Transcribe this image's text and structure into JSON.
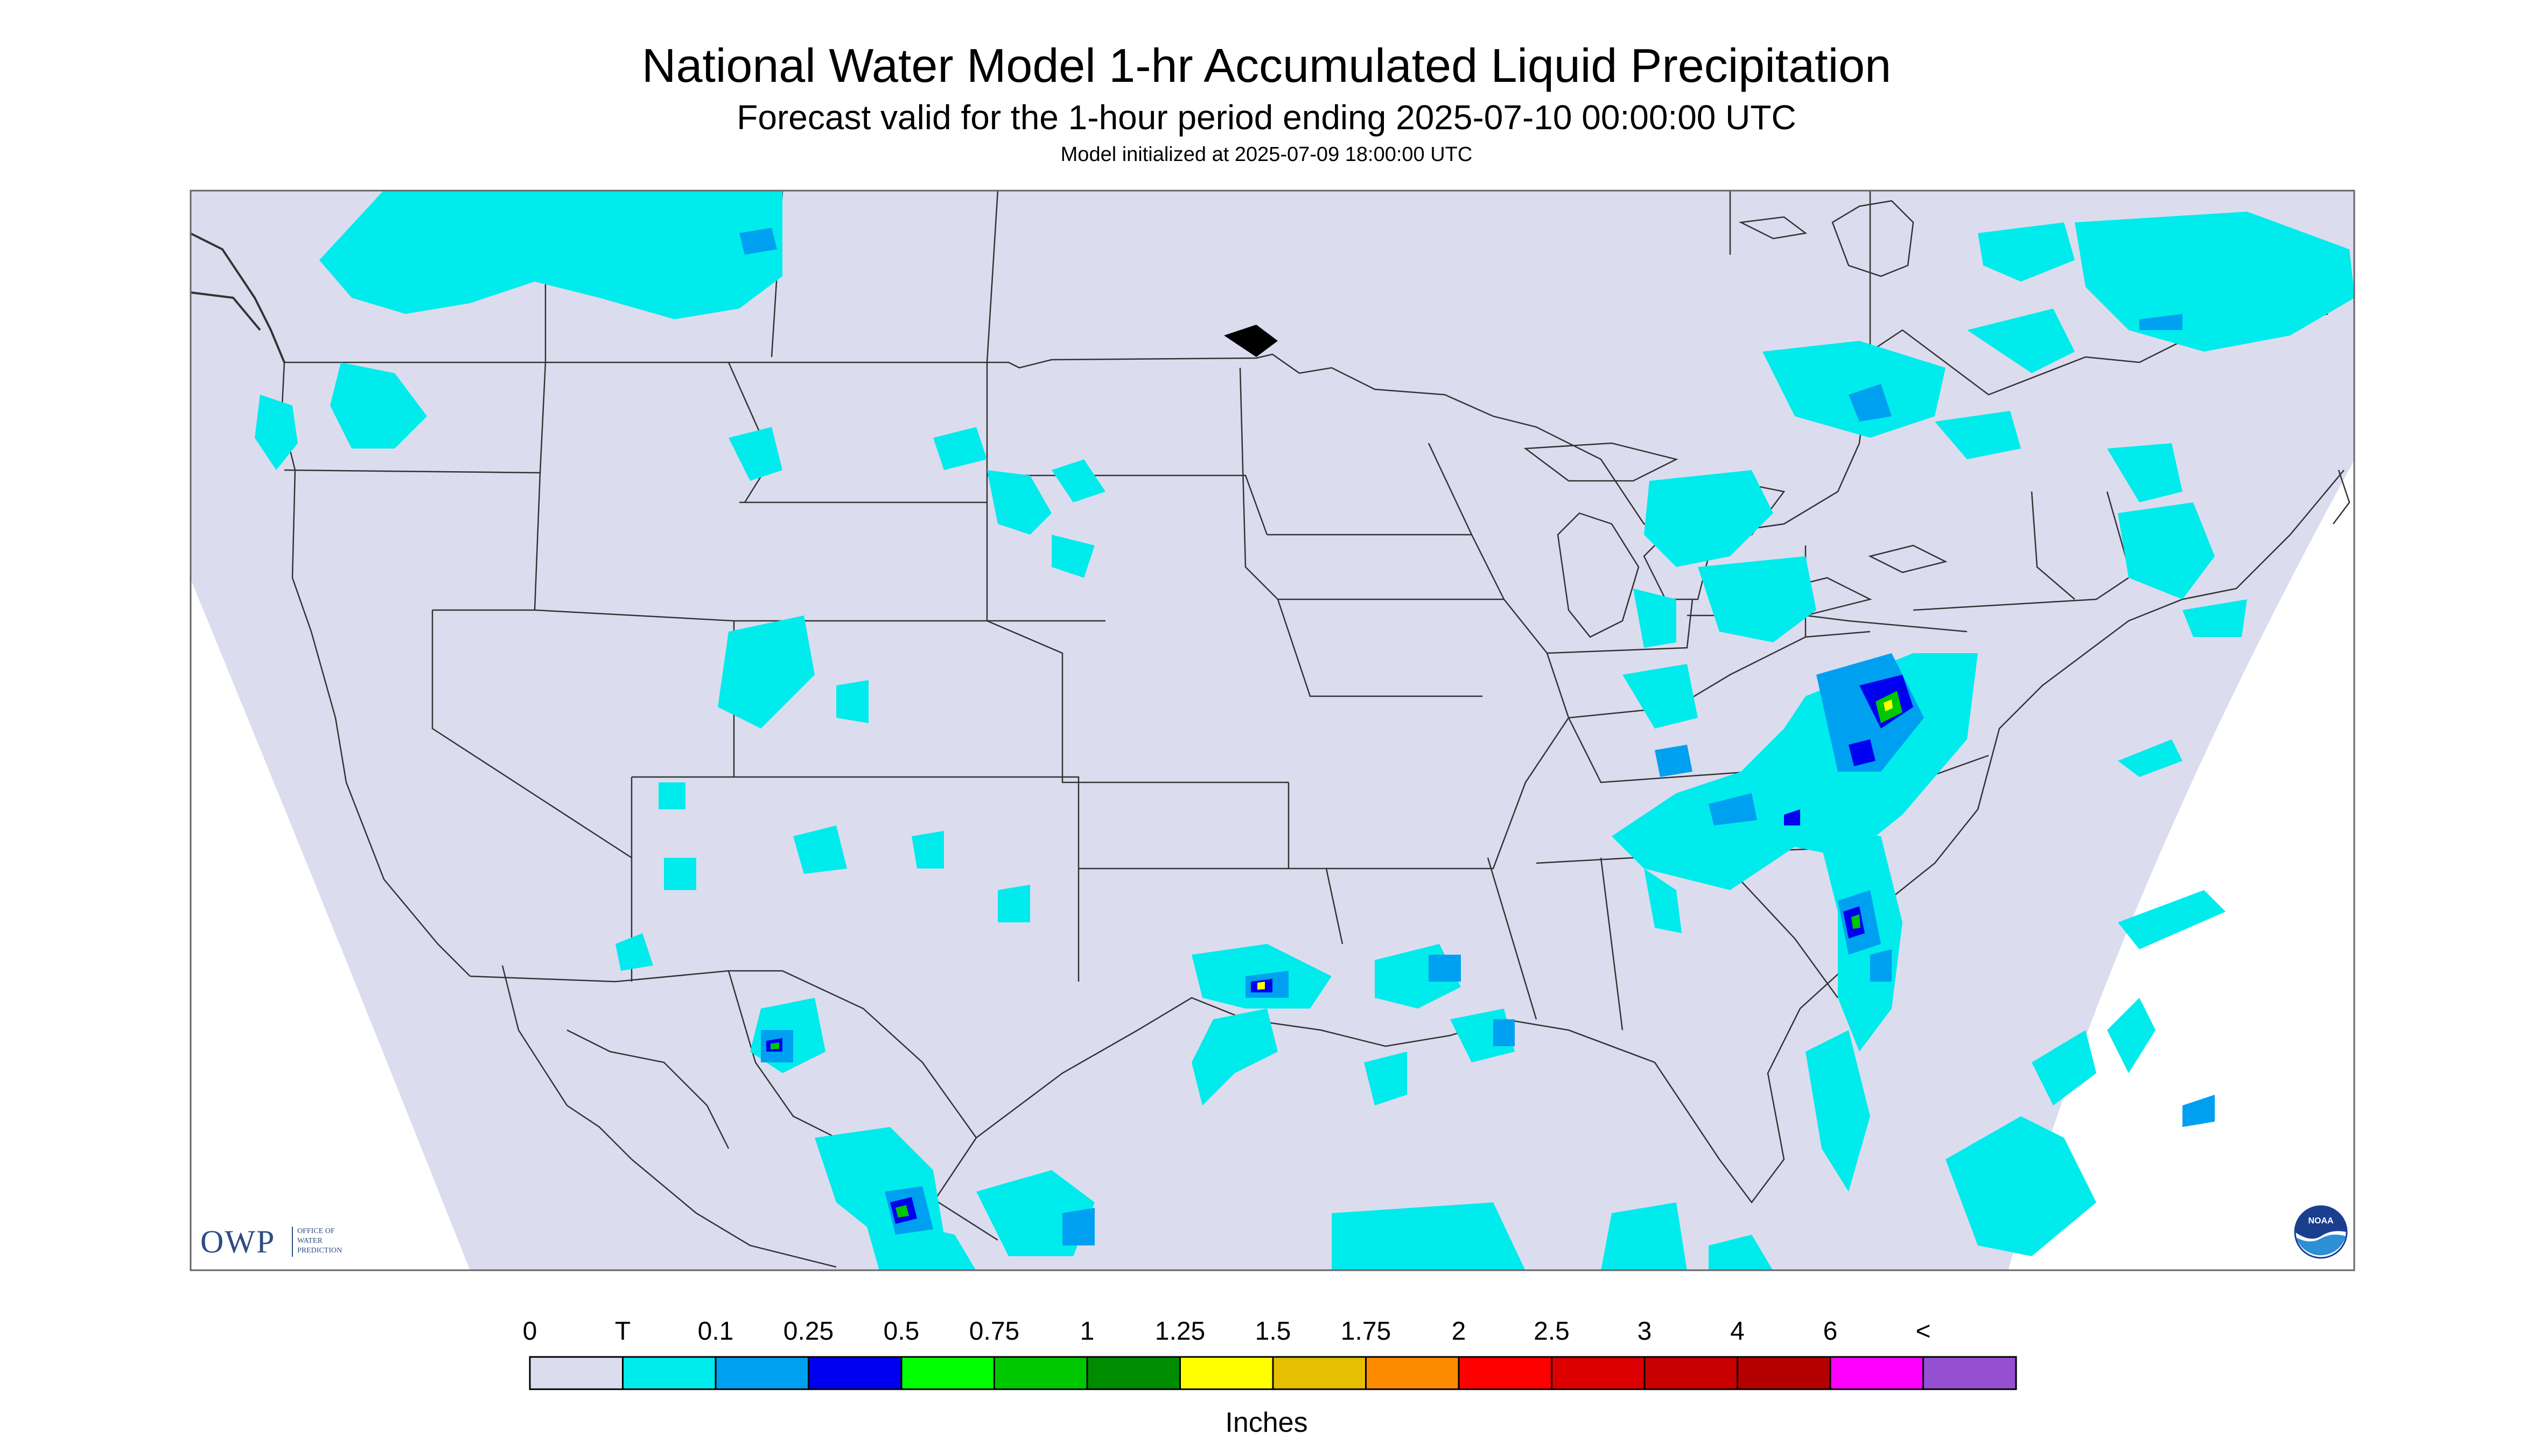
{
  "header": {
    "title": "National Water Model 1-hr Accumulated Liquid Precipitation",
    "subtitle": "Forecast valid for the 1-hour period ending 2025-07-10 00:00:00 UTC",
    "init_line": "Model initialized at 2025-07-09 18:00:00 UTC"
  },
  "logo": {
    "text": "OWP",
    "lines": [
      "OFFICE OF",
      "WATER",
      "PREDICTION"
    ]
  },
  "noaa_logo": {
    "text": "NOAA"
  },
  "legend": {
    "labels": [
      "0",
      "T",
      "0.1",
      "0.25",
      "0.5",
      "0.75",
      "1",
      "1.25",
      "1.5",
      "1.75",
      "2",
      "2.5",
      "3",
      "4",
      "6",
      "<"
    ],
    "colors": [
      "#dcdcef",
      "#00ebeb",
      "#00a0f0",
      "#0000f0",
      "#00ff00",
      "#00c800",
      "#008c00",
      "#ffff00",
      "#e6c000",
      "#ff8c00",
      "#ff0000",
      "#dc0000",
      "#c80000",
      "#b40000",
      "#ff00ff",
      "#9450d0"
    ],
    "units": "Inches"
  },
  "map": {
    "background_color": "#dcdcef",
    "outside_color": "#ffffff",
    "precip_colors": {
      "trace": "#00ebeb",
      "light": "#00a0f0",
      "moderate": "#0000f0",
      "heavy": "#00ff00",
      "heavy2": "#00c800",
      "very_heavy": "#008c00",
      "extreme": "#ffff00"
    }
  }
}
